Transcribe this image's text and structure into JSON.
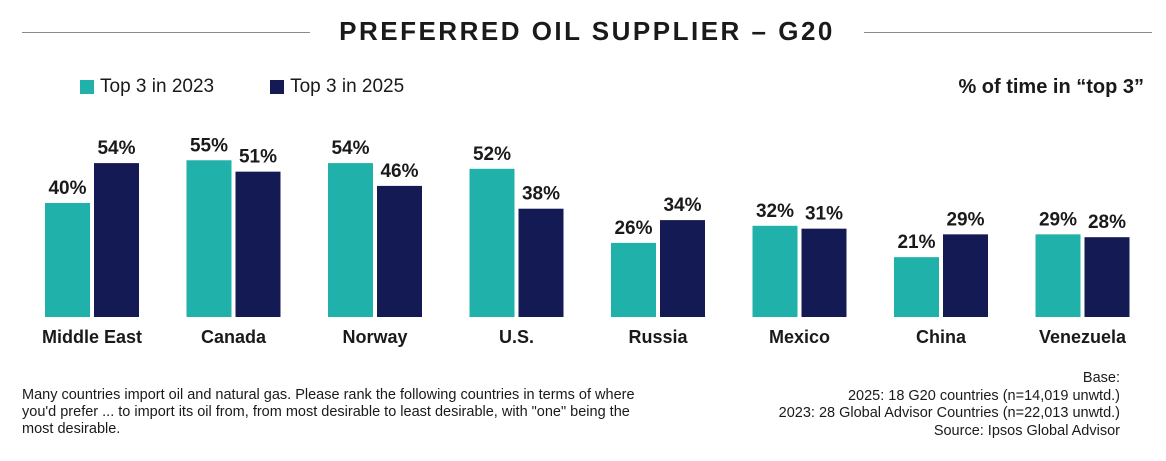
{
  "header": {
    "title": "PREFERRED OIL SUPPLIER – G20"
  },
  "legend": {
    "items": [
      {
        "label": "Top 3 in 2023",
        "color": "#20b2aa"
      },
      {
        "label": "Top 3 in 2025",
        "color": "#141b54"
      }
    ]
  },
  "unit_note": "% of time in “top 3”",
  "chart_data": {
    "type": "bar",
    "categories": [
      "Middle East",
      "Canada",
      "Norway",
      "U.S.",
      "Russia",
      "Mexico",
      "China",
      "Venezuela"
    ],
    "series": [
      {
        "name": "Top 3 in 2023",
        "color": "#20b2aa",
        "values": [
          40,
          55,
          54,
          52,
          26,
          32,
          21,
          29
        ]
      },
      {
        "name": "Top 3 in 2025",
        "color": "#141b54",
        "values": [
          54,
          51,
          46,
          38,
          34,
          31,
          29,
          28
        ]
      }
    ],
    "value_suffix": "%",
    "ylim": [
      0,
      60
    ],
    "grid": false,
    "legend_position": "top-left"
  },
  "footnote": "Many countries import oil and natural gas. Please rank the following countries in terms of where you'd prefer ... to import its oil from, from most desirable to least desirable, with \"one\" being the most desirable.",
  "base": {
    "label": "Base:",
    "line_2025": "2025: 18 G20 countries (n=14,019 unwtd.)",
    "line_2023": "2023:  28 Global Advisor Countries (n=22,013 unwtd.)",
    "source": "Source:  Ipsos Global Advisor"
  }
}
